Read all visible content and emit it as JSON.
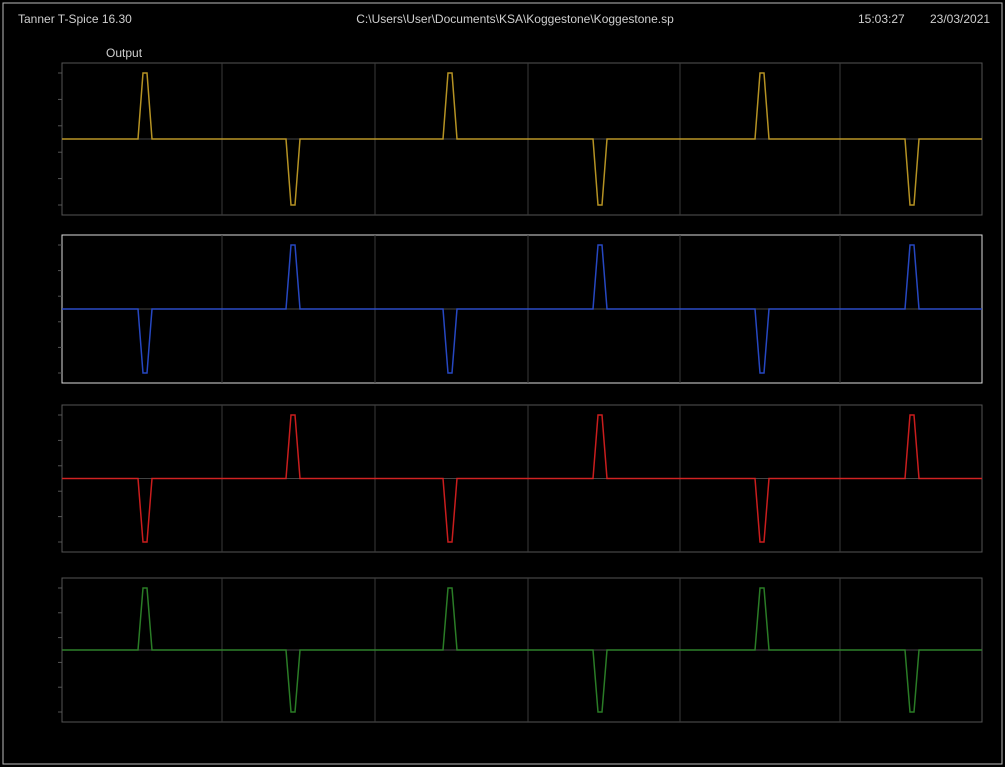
{
  "header": {
    "app": "Tanner  T-Spice 16.30",
    "path": "C:\\Users\\User\\Documents\\KSA\\Koggestone\\Koggestone.sp",
    "time": "15:03:27",
    "date": "23/03/2021"
  },
  "plot": {
    "title": "Output"
  }
}
